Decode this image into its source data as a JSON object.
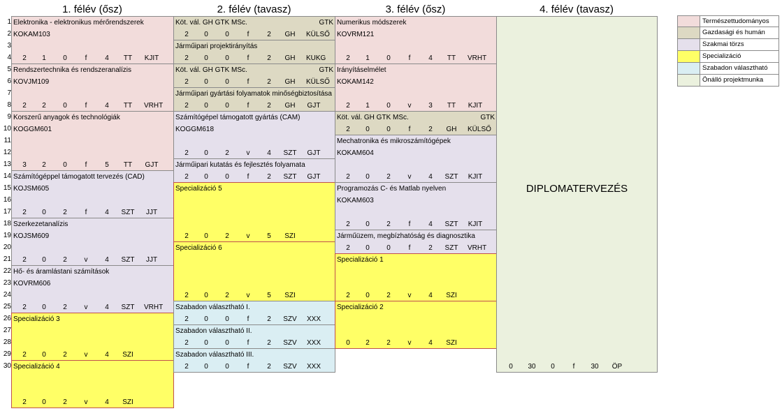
{
  "semesters": [
    {
      "title": "1. félév (ősz)"
    },
    {
      "title": "2. félév (tavasz)"
    },
    {
      "title": "3. félév (ősz)"
    },
    {
      "title": "4. félév (tavasz)"
    }
  ],
  "rows": [
    "1",
    "2",
    "3",
    "4",
    "5",
    "6",
    "7",
    "8",
    "9",
    "10",
    "11",
    "12",
    "13",
    "14",
    "15",
    "16",
    "17",
    "18",
    "19",
    "20",
    "21",
    "22",
    "23",
    "24",
    "25",
    "26",
    "27",
    "28",
    "29",
    "30"
  ],
  "columns": [
    {
      "courses": [
        {
          "kind": "pink",
          "name": "Elektronika - elektronikus mérőrendszerek",
          "code": "KOKAM103",
          "h": "2",
          "g": "1",
          "l": "0",
          "e": "f",
          "k": "4",
          "t": "TT",
          "i": "KJIT"
        },
        {
          "kind": "pink",
          "name": "Rendszertechnika és rendszeranalízis",
          "code": "KOVJM109",
          "h": "2",
          "g": "2",
          "l": "0",
          "e": "f",
          "k": "4",
          "t": "TT",
          "i": "VRHT"
        },
        {
          "kind": "pink",
          "name": "Korszerű anyagok és technológiák",
          "code": "KOGGM601",
          "h": "3",
          "g": "2",
          "l": "0",
          "e": "f",
          "k": "5",
          "t": "TT",
          "i": "GJT"
        },
        {
          "kind": "lav",
          "name": "Számítógéppel támogatott tervezés (CAD)",
          "code": "KOJSM605",
          "h": "2",
          "g": "0",
          "l": "2",
          "e": "f",
          "k": "4",
          "t": "SZT",
          "i": "JJT"
        },
        {
          "kind": "lav",
          "name": "Szerkezetanalízis",
          "code": "KOJSM609",
          "h": "2",
          "g": "0",
          "l": "2",
          "e": "v",
          "k": "4",
          "t": "SZT",
          "i": "JJT"
        },
        {
          "kind": "lav",
          "name": "Hő- és áramlástani számítások",
          "code": "KOVRM606",
          "h": "2",
          "g": "0",
          "l": "2",
          "e": "v",
          "k": "4",
          "t": "SZT",
          "i": "VRHT"
        },
        {
          "kind": "yel",
          "name": "Specializáció 3",
          "code": "",
          "h": "2",
          "g": "0",
          "l": "2",
          "e": "v",
          "k": "4",
          "t": "SZI",
          "i": ""
        },
        {
          "kind": "yel",
          "name": "Specializáció 4",
          "code": "",
          "h": "2",
          "g": "0",
          "l": "2",
          "e": "v",
          "k": "4",
          "t": "SZI",
          "i": ""
        }
      ]
    },
    {
      "courses": [
        {
          "kind": "tan",
          "name": "Köt. vál. GH GTK MSc.",
          "code": "",
          "tag": "GTK",
          "h": "2",
          "g": "0",
          "l": "0",
          "e": "f",
          "k": "2",
          "t": "GH",
          "i": "KÜLSŐ"
        },
        {
          "kind": "tan",
          "name": "Járműipari projektirányítás",
          "code": "",
          "h": "2",
          "g": "0",
          "l": "0",
          "e": "f",
          "k": "2",
          "t": "GH",
          "i": "KUKG"
        },
        {
          "kind": "tan",
          "name": "Köt. vál. GH GTK MSc.",
          "code": "",
          "tag": "GTK",
          "h": "2",
          "g": "0",
          "l": "0",
          "e": "f",
          "k": "2",
          "t": "GH",
          "i": "KÜLSŐ"
        },
        {
          "kind": "tan",
          "name": "Járműipari gyártási folyamatok minőségbiztosítása",
          "code": "",
          "h": "2",
          "g": "0",
          "l": "0",
          "e": "f",
          "k": "2",
          "t": "GH",
          "i": "GJT"
        },
        {
          "kind": "lav",
          "name": "Számítógépel támogatott gyártás (CAM)",
          "code": "KOGGM618",
          "h": "2",
          "g": "0",
          "l": "2",
          "e": "v",
          "k": "4",
          "t": "SZT",
          "i": "GJT"
        },
        {
          "kind": "lav",
          "name": "Járműipari kutatás és fejlesztés folyamata",
          "code": "",
          "h": "2",
          "g": "0",
          "l": "0",
          "e": "f",
          "k": "2",
          "t": "SZT",
          "i": "GJT"
        },
        {
          "kind": "yel",
          "name": "Specializáció 5",
          "code": "",
          "h": "2",
          "g": "0",
          "l": "2",
          "e": "v",
          "k": "5",
          "t": "SZI",
          "i": ""
        },
        {
          "kind": "yel",
          "name": "Specializáció 6",
          "code": "",
          "h": "2",
          "g": "0",
          "l": "2",
          "e": "v",
          "k": "5",
          "t": "SZI",
          "i": ""
        },
        {
          "kind": "blu",
          "name": "Szabadon választható I.",
          "code": "",
          "h": "2",
          "g": "0",
          "l": "0",
          "e": "f",
          "k": "2",
          "t": "SZV",
          "i": "XXX"
        },
        {
          "kind": "blu",
          "name": "Szabadon választható II.",
          "code": "",
          "h": "2",
          "g": "0",
          "l": "0",
          "e": "f",
          "k": "2",
          "t": "SZV",
          "i": "XXX"
        },
        {
          "kind": "blu",
          "name": "Szabadon választható III.",
          "code": "",
          "h": "2",
          "g": "0",
          "l": "0",
          "e": "f",
          "k": "2",
          "t": "SZV",
          "i": "XXX"
        }
      ]
    },
    {
      "courses": [
        {
          "kind": "pink",
          "name": "Numerikus módszerek",
          "code": "KOVRM121",
          "h": "2",
          "g": "1",
          "l": "0",
          "e": "f",
          "k": "4",
          "t": "TT",
          "i": "VRHT"
        },
        {
          "kind": "pink",
          "name": "Irányításelmélet",
          "code": "KOKAM142",
          "h": "2",
          "g": "1",
          "l": "0",
          "e": "v",
          "k": "3",
          "t": "TT",
          "i": "KJIT"
        },
        {
          "kind": "tan",
          "name": "Köt. vál. GH GTK MSc.",
          "code": "",
          "tag": "GTK",
          "h": "2",
          "g": "0",
          "l": "0",
          "e": "f",
          "k": "2",
          "t": "GH",
          "i": "KÜLSŐ"
        },
        {
          "kind": "lav",
          "name": "Mechatronika és mikroszámítógépek",
          "code": "KOKAM604",
          "h": "2",
          "g": "0",
          "l": "2",
          "e": "v",
          "k": "4",
          "t": "SZT",
          "i": "KJIT"
        },
        {
          "kind": "lav",
          "name": "Programozás C- és Matlab nyelven",
          "code": "KOKAM603",
          "h": "2",
          "g": "0",
          "l": "2",
          "e": "f",
          "k": "4",
          "t": "SZT",
          "i": "KJIT"
        },
        {
          "kind": "lav",
          "name": "Járműüzem, megbízhatóság és diagnosztika",
          "code": "",
          "h": "2",
          "g": "0",
          "l": "0",
          "e": "f",
          "k": "2",
          "t": "SZT",
          "i": "VRHT"
        },
        {
          "kind": "yel",
          "name": "Specializáció 1",
          "code": "",
          "h": "2",
          "g": "0",
          "l": "2",
          "e": "v",
          "k": "4",
          "t": "SZI",
          "i": ""
        },
        {
          "kind": "yel",
          "name": "Specializáció 2",
          "code": "",
          "h": "0",
          "g": "2",
          "l": "2",
          "e": "v",
          "k": "4",
          "t": "SZI",
          "i": ""
        }
      ]
    },
    {
      "courses": [
        {
          "kind": "grn",
          "name": "DIPLOMATERVEZÉS",
          "code": "",
          "h": "0",
          "g": "30",
          "l": "0",
          "e": "f",
          "k": "30",
          "t": "ÖP",
          "i": ""
        }
      ]
    }
  ],
  "legend": [
    {
      "label": "Természettudományos",
      "color": "#f2dcdb"
    },
    {
      "label": "Gazdasági és humán",
      "color": "#ddd9c3"
    },
    {
      "label": "Szakmai törzs",
      "color": "#e5e0ec"
    },
    {
      "label": "Specializáció",
      "color": "#ffff66"
    },
    {
      "label": "Szabadon választható",
      "color": "#daeef3"
    },
    {
      "label": "Önálló projektmunka",
      "color": "#ebf1de"
    }
  ]
}
